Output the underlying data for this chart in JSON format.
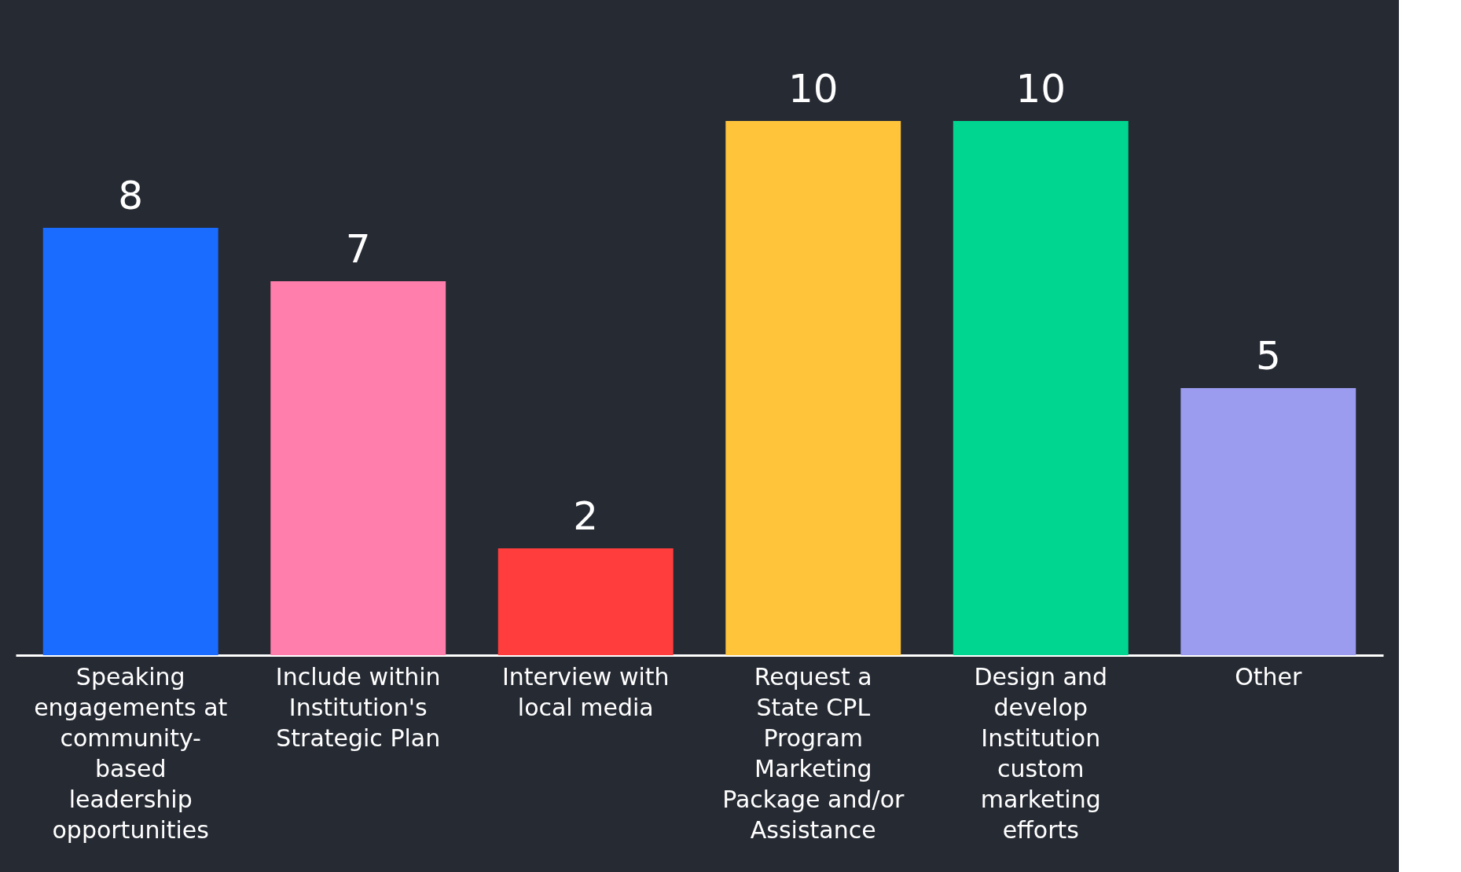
{
  "chart_data": {
    "type": "bar",
    "categories": [
      "Speaking engagements at community-based leadership opportunities",
      "Include within Institution's Strategic Plan",
      "Interview with local media",
      "Request a State CPL Program Marketing Package and/or Assistance",
      "Design and develop Institution custom marketing efforts",
      "Other"
    ],
    "values": [
      8,
      7,
      2,
      10,
      10,
      5
    ],
    "colors": [
      "#1a6bff",
      "#ff7eac",
      "#ff3d3d",
      "#ffc43a",
      "#00d68f",
      "#9b9bef"
    ],
    "data_labels": true
  }
}
